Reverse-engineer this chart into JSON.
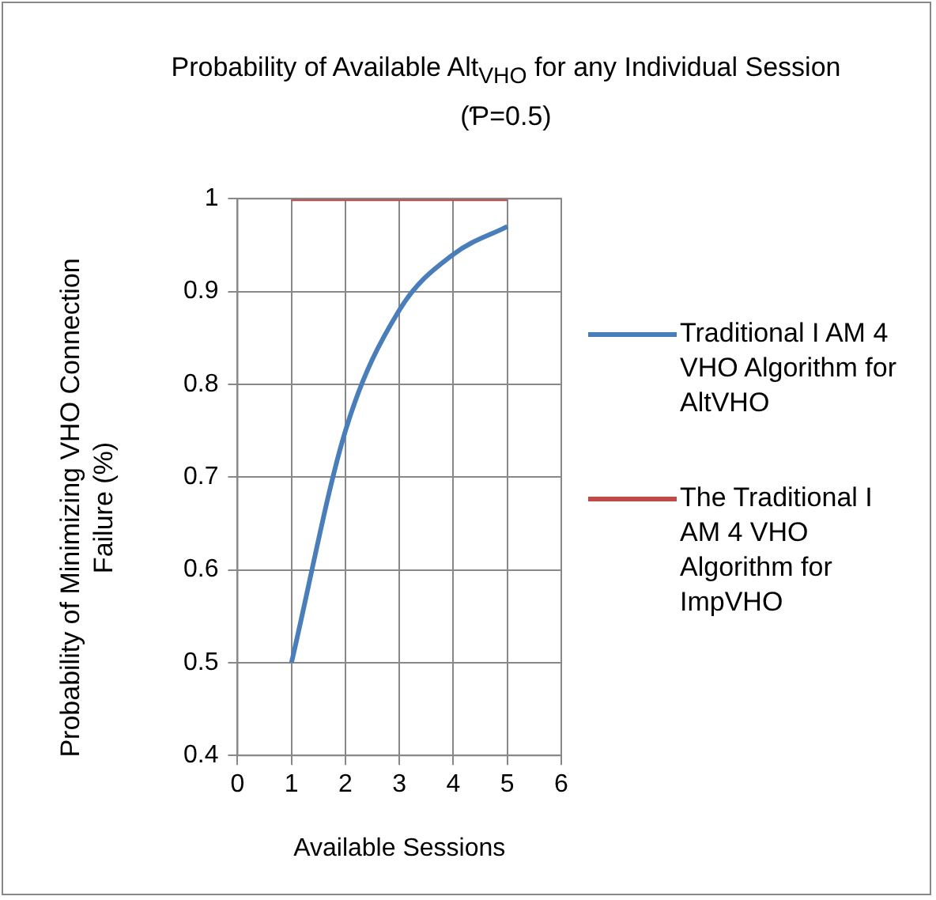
{
  "chart_data": {
    "type": "line",
    "title": "Probability of Available Alt$_{VHO}$ for any Individual Session (Ƥ=0.5)",
    "xlabel": "Available Sessions",
    "ylabel": "Probability of Minimizing VHO Connection Failure (%)",
    "xlim": [
      0,
      6
    ],
    "xticks": [
      0,
      1,
      2,
      3,
      4,
      5,
      6
    ],
    "ylim": [
      0.4,
      1
    ],
    "yticks": [
      0.4,
      0.5,
      0.6,
      0.7,
      0.8,
      0.9,
      1
    ],
    "grid": true,
    "legend": "right",
    "marker": "none",
    "line_style": "solid",
    "series": [
      {
        "name": "Traditional I AM 4 VHO Algorithm for AltVHO",
        "color": "#4a7ebb",
        "x": [
          1,
          2,
          3,
          4,
          5
        ],
        "values": [
          0.5,
          0.75,
          0.88,
          0.94,
          0.97
        ]
      },
      {
        "name": "The Traditional I AM 4 VHO Algorithm for ImpVHO",
        "color": "#be4b48",
        "x": [
          1,
          2,
          3,
          4,
          5
        ],
        "values": [
          1,
          1,
          1,
          1,
          1
        ]
      }
    ]
  }
}
